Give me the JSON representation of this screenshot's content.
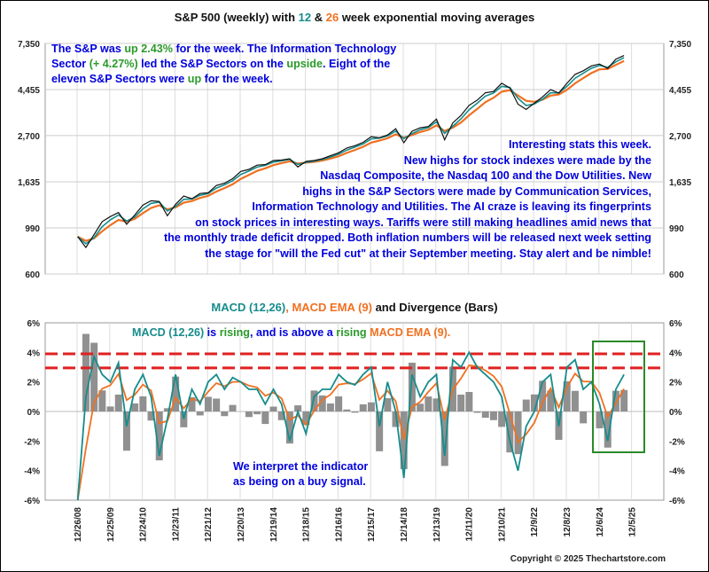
{
  "top_title": {
    "a": "S&P 500 (weekly) with ",
    "b": "12",
    "c": " & ",
    "d": "26",
    "e": " week exponential moving averages"
  },
  "top_note": {
    "l1a": "The S&P was ",
    "l1b": "up 2.43%",
    "l1c": " for the week. The Information Technology",
    "l2a": "Sector ",
    "l2b": "(+ 4.27%)",
    "l2c": " led the S&P Sectors on the ",
    "l2d": "upside",
    "l2e": ".  Eight of the",
    "l3a": "eleven S&P Sectors were ",
    "l3b": "up",
    "l3c": " for the week."
  },
  "stats_note": [
    "Interesting stats this week.",
    "New highs for stock indexes were made by the",
    "Nasdaq Composite, the Nasdaq 100 and the Dow Utilities.  New",
    "highs in the S&P Sectors were made by Communication Services,",
    "Information Technology and Utilities.  The AI craze is leaving its fingerprints",
    "on stock prices in interesting ways.  Tariffs were still making headlines amid news that",
    "the monthly trade deficit dropped.  Both inflation numbers will be released next week setting",
    "the stage for \"will the Fed cut\" at their September meeting. Stay alert and be nimble!"
  ],
  "macd_title": {
    "a": "MACD (12,26)",
    "b": ", ",
    "c": "MACD EMA (9)",
    "d": " and Divergence (Bars)"
  },
  "macd_note": {
    "a": "MACD (12,26)",
    "b": " is ",
    "c": "rising",
    "d": ", and is above a ",
    "e": "rising",
    "f": " MACD EMA (9)",
    "g": "."
  },
  "signal_note": [
    "We interpret the indicator",
    "as being on a buy signal."
  ],
  "copyright": "Copyright © 2025 Thechartstore.com",
  "colors": {
    "price": "#111111",
    "ema12": "#178c8c",
    "ema26": "#f07020",
    "macd": "#178c8c",
    "signal": "#f07020",
    "bars": "#909090",
    "redline": "#e02020",
    "box": "#2a8a2a"
  },
  "chart_data": [
    {
      "type": "line",
      "title": "S&P 500 (weekly) with 12 & 26 week exponential moving averages",
      "scale": "log",
      "y_ticks": [
        7350,
        4455,
        2700,
        1635,
        990,
        600
      ],
      "ylim": [
        600,
        7350
      ],
      "x_start": 2009.0,
      "x_step_years": 0.25,
      "series": [
        {
          "name": "S&P 500",
          "values": [
            900,
            800,
            920,
            1060,
            1120,
            1170,
            1030,
            1140,
            1270,
            1330,
            1320,
            1130,
            1280,
            1400,
            1360,
            1440,
            1450,
            1570,
            1610,
            1690,
            1830,
            1870,
            1960,
            1970,
            2060,
            2070,
            2100,
            1920,
            2040,
            2060,
            2100,
            2170,
            2240,
            2360,
            2420,
            2510,
            2670,
            2640,
            2720,
            2910,
            2500,
            2830,
            2940,
            2980,
            3230,
            2580,
            3100,
            3360,
            3750,
            3970,
            4300,
            4360,
            4770,
            4530,
            3800,
            3590,
            3840,
            4110,
            4450,
            4290,
            4770,
            5250,
            5460,
            5760,
            5880,
            5600,
            6200,
            6450
          ]
        },
        {
          "name": "12 week EMA",
          "derived": "ema12"
        },
        {
          "name": "26 week EMA",
          "derived": "ema26"
        }
      ]
    },
    {
      "type": "line",
      "title": "MACD (12,26), MACD EMA (9) and Divergence (Bars)",
      "ylabel": "%",
      "y_ticks": [
        "6%",
        "4%",
        "2%",
        "0%",
        "-2%",
        "-4%",
        "-6%"
      ],
      "ylim": [
        -6,
        6
      ],
      "reference_lines": [
        3.9,
        2.95
      ],
      "x_ticks": [
        "12/26/08",
        "12/25/09",
        "12/24/10",
        "12/23/11",
        "12/21/12",
        "12/20/13",
        "12/19/14",
        "12/18/15",
        "12/16/16",
        "12/15/17",
        "12/14/18",
        "12/13/19",
        "12/11/20",
        "12/10/21",
        "12/9/22",
        "12/8/23",
        "12/6/24",
        "12/5/25"
      ],
      "x_start": 2009.0,
      "x_step_years": 0.25,
      "series": [
        {
          "name": "MACD (12,26)",
          "values": [
            -6,
            1,
            3.7,
            2.5,
            2,
            3.3,
            -1,
            1.5,
            2.5,
            1,
            -3,
            -0.5,
            2.5,
            -0.5,
            1.5,
            0.5,
            2,
            2.5,
            1.5,
            2.3,
            2,
            1.5,
            1.5,
            0.5,
            1.5,
            0.5,
            -2,
            0,
            -1.5,
            1,
            1.5,
            1.5,
            2.5,
            2,
            1.8,
            2.5,
            3,
            -1,
            2,
            0,
            -4.5,
            2.5,
            1,
            2,
            2.5,
            -3,
            3.5,
            3,
            4,
            3,
            2.5,
            2,
            1,
            -2,
            -4,
            -1,
            0,
            2,
            2.5,
            -1,
            3,
            3.5,
            1.5,
            2,
            0.5,
            -2,
            1.5,
            2.5
          ]
        },
        {
          "name": "MACD EMA (9)",
          "derived": "ema"
        },
        {
          "name": "Divergence (Bars)",
          "derived": "macd-ema"
        }
      ]
    }
  ]
}
